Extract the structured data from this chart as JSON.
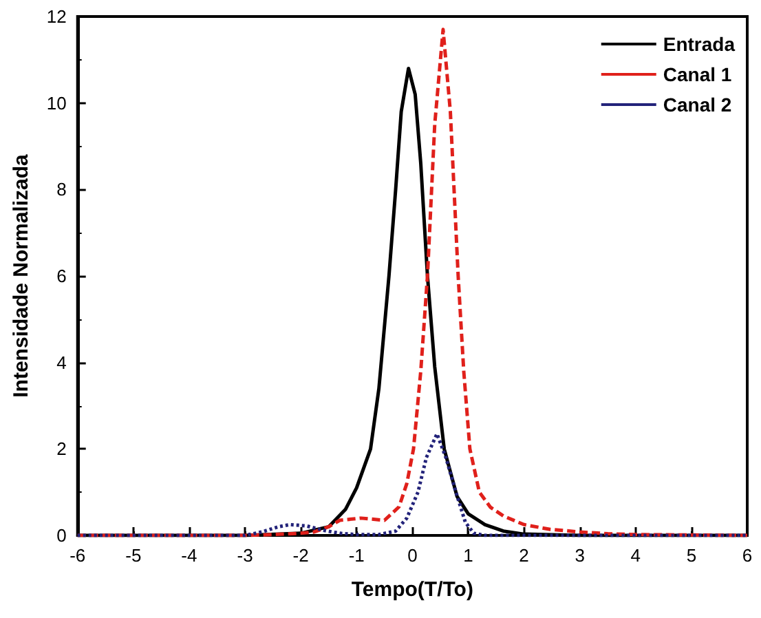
{
  "chart_data": {
    "type": "line",
    "xlabel": "Tempo(T/To)",
    "ylabel": "Intensidade Normalizada",
    "xlim": [
      -6,
      6
    ],
    "xticks": [
      -6,
      -5,
      -4,
      -3,
      -2,
      -1,
      0,
      1,
      2,
      3,
      4,
      5,
      6
    ],
    "ylim": [
      0,
      12
    ],
    "yticks": [
      0,
      2,
      4,
      6,
      8,
      10,
      12
    ],
    "grid": false,
    "legend": "top right",
    "marker": "none",
    "series": [
      {
        "name": "Entrada",
        "color": "#000000",
        "line_style": "solid",
        "x": [
          -6,
          -3,
          -2,
          -1.5,
          -1.2,
          -1,
          -0.75,
          -0.6,
          -0.42,
          -0.3,
          -0.2,
          -0.07,
          0.05,
          0.15,
          0.27,
          0.4,
          0.57,
          0.8,
          1,
          1.3,
          1.63,
          2,
          3,
          6
        ],
        "values": [
          0,
          0,
          0.05,
          0.2,
          0.6,
          1.1,
          2,
          3.4,
          6,
          8,
          9.8,
          10.8,
          10.2,
          8.6,
          6,
          3.9,
          2,
          0.9,
          0.5,
          0.25,
          0.1,
          0.03,
          0,
          0
        ]
      },
      {
        "name": "Canal 1",
        "color": "#e0201b",
        "line_style": "dashed",
        "x": [
          -6,
          -3,
          -2.5,
          -2,
          -1.76,
          -1.5,
          -1.3,
          -0.92,
          -0.5,
          -0.24,
          -0.1,
          0.02,
          0.15,
          0.27,
          0.4,
          0.55,
          0.68,
          0.82,
          0.92,
          1.03,
          1.2,
          1.4,
          1.63,
          2,
          2.47,
          3,
          3.5,
          4,
          6
        ],
        "values": [
          0,
          0,
          0.02,
          0.05,
          0.08,
          0.2,
          0.35,
          0.4,
          0.35,
          0.66,
          1.2,
          2,
          3.8,
          6,
          9.5,
          11.7,
          9.8,
          6,
          3.8,
          2,
          1,
          0.65,
          0.45,
          0.25,
          0.14,
          0.08,
          0.04,
          0.02,
          0
        ]
      },
      {
        "name": "Canal 2",
        "color": "#23237a",
        "line_style": "dotted",
        "x": [
          -6,
          -3,
          -2.7,
          -2.4,
          -2.19,
          -1.9,
          -1.6,
          -1.3,
          -1,
          -0.6,
          -0.3,
          -0.1,
          0.1,
          0.25,
          0.44,
          0.6,
          0.78,
          0.95,
          1.1,
          1.3,
          6
        ],
        "values": [
          0,
          0,
          0.08,
          0.2,
          0.25,
          0.22,
          0.12,
          0.05,
          0.02,
          0.02,
          0.1,
          0.4,
          1,
          1.8,
          2.35,
          1.8,
          1,
          0.3,
          0.05,
          0,
          0
        ]
      }
    ]
  }
}
